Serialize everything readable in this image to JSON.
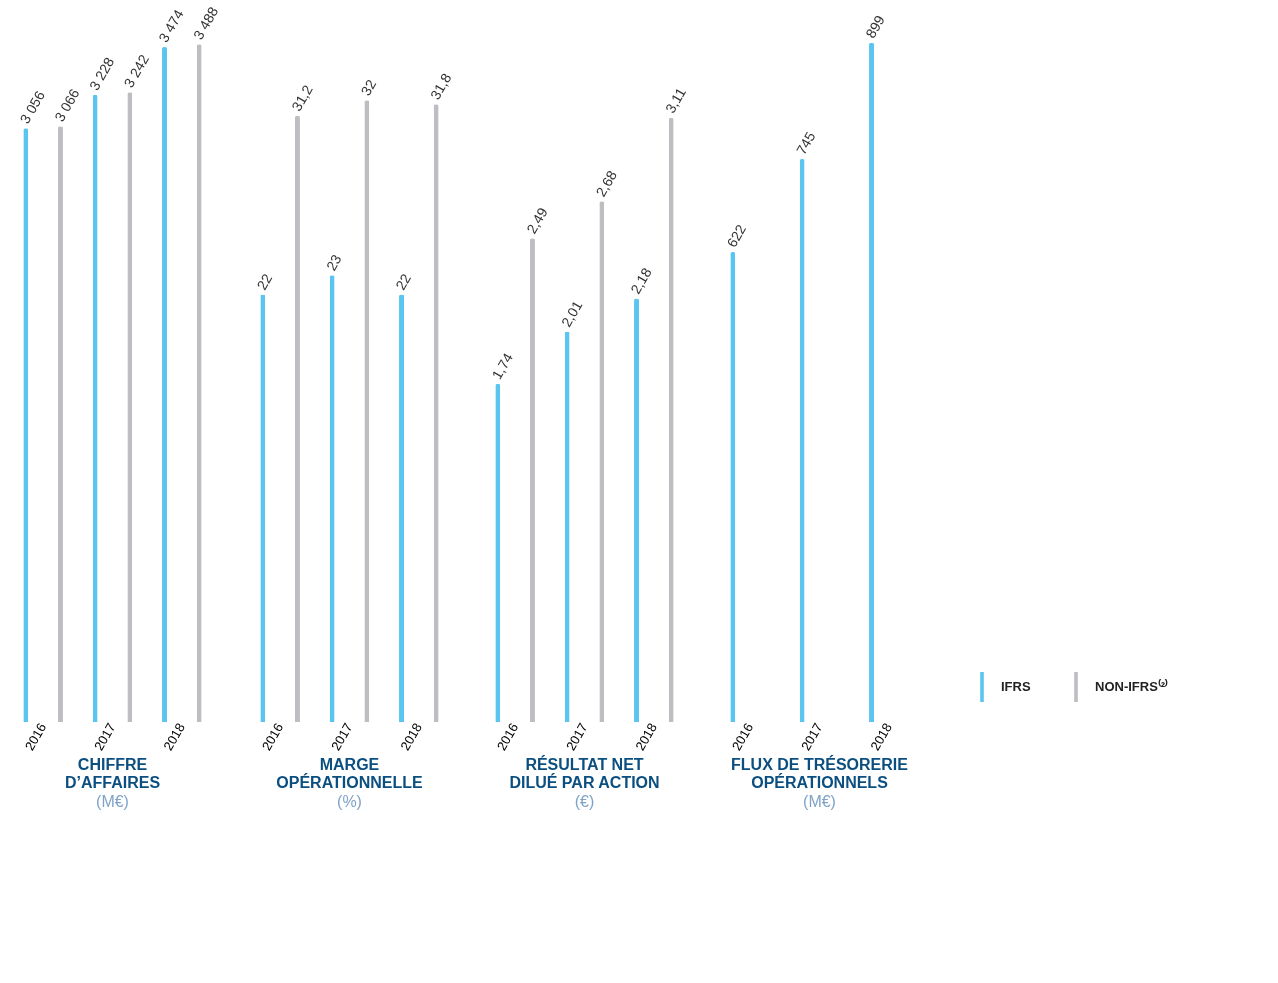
{
  "chart_data": [
    {
      "type": "bar",
      "title": "CHIFFRE D’AFFAIRES",
      "subtitle": "(M€)",
      "categories": [
        "2016",
        "2017",
        "2018"
      ],
      "data_labels": true,
      "legend": "bottom right",
      "series": [
        {
          "name": "IFRS",
          "color": "#5bc5f2",
          "values": [
            3056,
            3228,
            3474
          ],
          "value_labels": [
            "3 056",
            "3 228",
            "3 474"
          ]
        },
        {
          "name": "NON-IFRS⁽²⁾",
          "color": "#bdbdc2",
          "values": [
            3066,
            3242,
            3488
          ],
          "value_labels": [
            "3 066",
            "3 242",
            "3 488"
          ]
        }
      ]
    },
    {
      "type": "bar",
      "title": "MARGE OPÉRATIONNELLE",
      "subtitle": "(%)",
      "categories": [
        "2016",
        "2017",
        "2018"
      ],
      "data_labels": true,
      "series": [
        {
          "name": "IFRS",
          "color": "#5bc5f2",
          "values": [
            22,
            23,
            22
          ],
          "value_labels": [
            "22",
            "23",
            "22"
          ]
        },
        {
          "name": "NON-IFRS⁽²⁾",
          "color": "#bdbdc2",
          "values": [
            31.2,
            32,
            31.8
          ],
          "value_labels": [
            "31,2",
            "32",
            "31,8"
          ]
        }
      ]
    },
    {
      "type": "bar",
      "title": "RÉSULTAT NET DILUÉ PAR ACTION",
      "subtitle": "(€)",
      "categories": [
        "2016",
        "2017",
        "2018"
      ],
      "data_labels": true,
      "series": [
        {
          "name": "IFRS",
          "color": "#5bc5f2",
          "values": [
            1.74,
            2.01,
            2.18
          ],
          "value_labels": [
            "1,74",
            "2,01",
            "2,18"
          ]
        },
        {
          "name": "NON-IFRS⁽²⁾",
          "color": "#bdbdc2",
          "values": [
            2.49,
            2.68,
            3.11
          ],
          "value_labels": [
            "2,49",
            "2,68",
            "3,11"
          ]
        }
      ]
    },
    {
      "type": "bar",
      "title": "FLUX DE TRÉSORERIE OPÉRATIONNELS",
      "subtitle": "(M€)",
      "categories": [
        "2016",
        "2017",
        "2018"
      ],
      "data_labels": true,
      "legend": "bottom right",
      "series": [
        {
          "name": "IFRS",
          "color": "#5bc5f2",
          "values": [
            622,
            745,
            899
          ],
          "value_labels": [
            "622",
            "745",
            "899"
          ]
        }
      ]
    }
  ]
}
